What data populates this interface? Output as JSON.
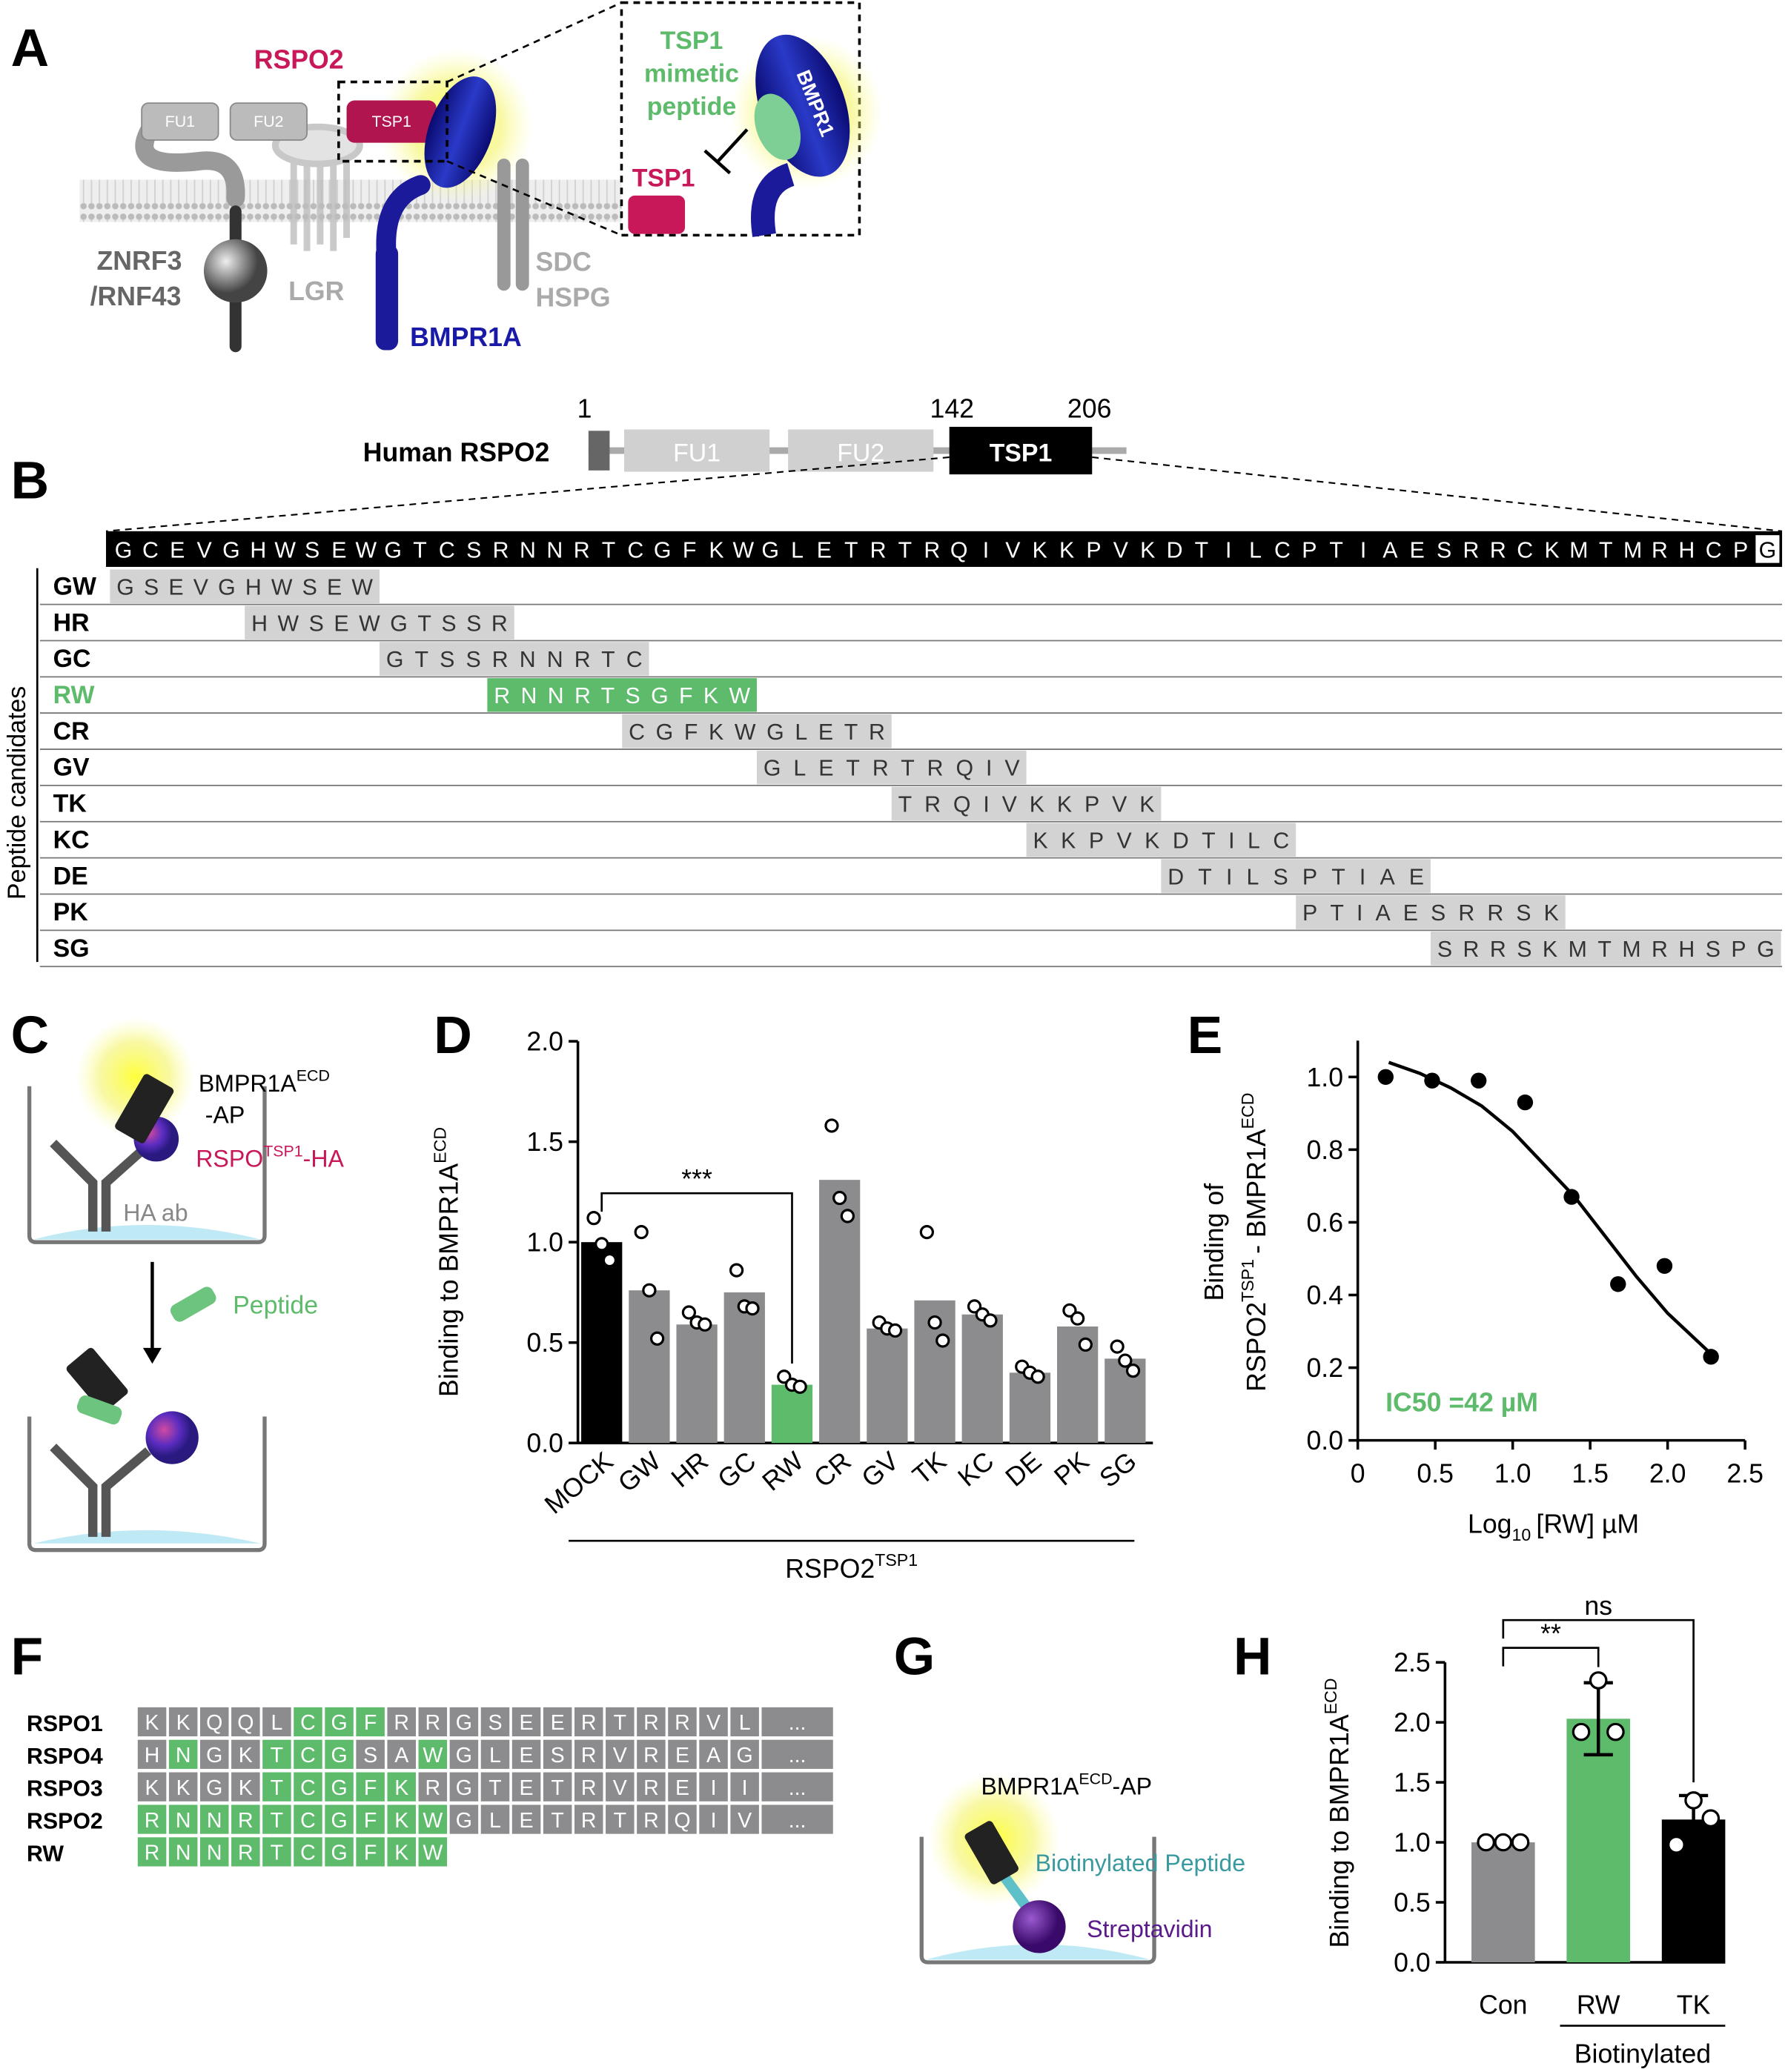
{
  "panel_labels": [
    "A",
    "B",
    "C",
    "D",
    "E",
    "F",
    "G",
    "H"
  ],
  "panel_a": {
    "rspo2": "RSPO2",
    "fu1": "FU1",
    "fu2": "FU2",
    "tsp1": "TSP1",
    "znrf3": "ZNRF3",
    "rnf43": "/RNF43",
    "lgr": "LGR",
    "bmpr1a": "BMPR1A",
    "sdc": "SDC",
    "hspg": "HSPG",
    "inset": {
      "mimetic_lines": [
        "TSP1",
        "mimetic",
        "peptide"
      ],
      "bmpr1": "BMPR1",
      "tsp1": "TSP1"
    }
  },
  "panel_b": {
    "positions": [
      1,
      142,
      206
    ],
    "protein": "Human RSPO2",
    "domains": [
      "FU1",
      "FU2",
      "TSP1"
    ],
    "sequence": [
      "G",
      "C",
      "E",
      "V",
      "G",
      "H",
      "W",
      "S",
      "E",
      "W",
      "G",
      "T",
      "C",
      "S",
      "R",
      "N",
      "N",
      "R",
      "T",
      "C",
      "G",
      "F",
      "K",
      "W",
      "G",
      "L",
      "E",
      "T",
      "R",
      "T",
      "R",
      "Q",
      "I",
      "V",
      "K",
      "K",
      "P",
      "V",
      "K",
      "D",
      "T",
      "I",
      "L",
      "C",
      "P",
      "T",
      "I",
      "A",
      "E",
      "S",
      "R",
      "R",
      "C",
      "K",
      "M",
      "T",
      "M",
      "R",
      "H",
      "C",
      "P",
      "G"
    ],
    "candidates_label": "Peptide candidates",
    "highlight_color": "#5dbb6b",
    "peptides": [
      {
        "name": "GW",
        "sequence": "GSEVGHWSEW"
      },
      {
        "name": "HR",
        "sequence": "HWSEWGTSSR"
      },
      {
        "name": "GC",
        "sequence": "GTSSRNNRTC"
      },
      {
        "name": "RW",
        "sequence": "RNNRTSGFKW",
        "highlighted": true
      },
      {
        "name": "CR",
        "sequence": "CGFKWGLETR"
      },
      {
        "name": "GV",
        "sequence": "GLETRTRQIV"
      },
      {
        "name": "TK",
        "sequence": "TRQIVKKPVK"
      },
      {
        "name": "KC",
        "sequence": "KKPVKDTILC"
      },
      {
        "name": "DE",
        "sequence": "DTILSPTIAE"
      },
      {
        "name": "PK",
        "sequence": "PTIAESRRSK"
      },
      {
        "name": "SG",
        "sequence": "SRRSKMTMRHSPG"
      }
    ]
  },
  "panel_c": {
    "bmpr1a": "BMPR1A",
    "ecd": "ECD",
    "ap": "-AP",
    "rspo": "RSPO",
    "tsp1": "TSP1",
    "ha": "-HA",
    "ha_ab": "HA ab",
    "peptide": "Peptide"
  },
  "panel_f": {
    "rows": [
      {
        "name": "RSPO1",
        "residues": [
          "K",
          "K",
          "Q",
          "Q",
          "L",
          "C",
          "G",
          "F",
          "R",
          "R",
          "G",
          "S",
          "E",
          "E",
          "R",
          "T",
          "R",
          "R",
          "V",
          "L",
          "..."
        ],
        "highlight": [
          5,
          6,
          7
        ]
      },
      {
        "name": "RSPO4",
        "residues": [
          "H",
          "N",
          "G",
          "K",
          "T",
          "C",
          "G",
          "S",
          "A",
          "W",
          "G",
          "L",
          "E",
          "S",
          "R",
          "V",
          "R",
          "E",
          "A",
          "G",
          "..."
        ],
        "highlight": [
          1,
          4,
          5,
          6,
          9
        ]
      },
      {
        "name": "RSPO3",
        "residues": [
          "K",
          "K",
          "G",
          "K",
          "T",
          "C",
          "G",
          "F",
          "K",
          "R",
          "G",
          "T",
          "E",
          "T",
          "R",
          "V",
          "R",
          "E",
          "I",
          "I",
          "..."
        ],
        "highlight": [
          4,
          5,
          6,
          7,
          8
        ]
      },
      {
        "name": "RSPO2",
        "residues": [
          "R",
          "N",
          "N",
          "R",
          "T",
          "C",
          "G",
          "F",
          "K",
          "W",
          "G",
          "L",
          "E",
          "T",
          "R",
          "T",
          "R",
          "Q",
          "I",
          "V",
          "..."
        ],
        "highlight": [
          0,
          1,
          2,
          3,
          4,
          5,
          6,
          7,
          8,
          9
        ]
      },
      {
        "name": "RW",
        "residues": [
          "R",
          "N",
          "N",
          "R",
          "T",
          "C",
          "G",
          "F",
          "K",
          "W"
        ],
        "highlight": [
          0,
          1,
          2,
          3,
          4,
          5,
          6,
          7,
          8,
          9
        ]
      }
    ]
  },
  "panel_g": {
    "bmpr1a": "BMPR1A",
    "ecd": "ECD",
    "ap": "-AP",
    "biotinylated_peptide": "Biotinylated Peptide",
    "streptavidin": "Streptavidin"
  },
  "chart_data": [
    {
      "type": "bar",
      "ylabel": "Binding to BMPR1A",
      "ylabel_sup": "ECD",
      "group_label": "RSPO2",
      "group_label_sup": "TSP1",
      "categories": [
        "MOCK",
        "GW",
        "HR",
        "GC",
        "RW",
        "CR",
        "GV",
        "TK",
        "KC",
        "DE",
        "PK",
        "SG"
      ],
      "values": [
        1.0,
        0.76,
        0.59,
        0.75,
        0.29,
        1.31,
        0.57,
        0.71,
        0.64,
        0.35,
        0.58,
        0.42
      ],
      "colors": [
        "#000000",
        "#8c8c8f",
        "#8c8c8f",
        "#8c8c8f",
        "#5dbb6b",
        "#8c8c8f",
        "#8c8c8f",
        "#8c8c8f",
        "#8c8c8f",
        "#8c8c8f",
        "#8c8c8f",
        "#8c8c8f"
      ],
      "points": [
        [
          1.12,
          0.99,
          0.91
        ],
        [
          1.05,
          0.76,
          0.52
        ],
        [
          0.65,
          0.6,
          0.59
        ],
        [
          0.86,
          0.68,
          0.67
        ],
        [
          0.33,
          0.29,
          0.28
        ],
        [
          1.58,
          1.22,
          1.13
        ],
        [
          0.6,
          0.57,
          0.56
        ],
        [
          1.05,
          0.6,
          0.51
        ],
        [
          0.68,
          0.64,
          0.61
        ],
        [
          0.38,
          0.35,
          0.33
        ],
        [
          0.66,
          0.62,
          0.49
        ],
        [
          0.48,
          0.41,
          0.36
        ]
      ],
      "significance": [
        {
          "text": "***",
          "from": 0,
          "to": 4
        }
      ],
      "ylim": [
        0,
        2
      ],
      "yticks": [
        {
          "value": 0,
          "label": "0.0"
        },
        0.5,
        {
          "value": 1,
          "label": "1.0"
        },
        1.5,
        {
          "value": 2,
          "label": "2.0"
        }
      ]
    },
    {
      "type": "scatter",
      "ylabel_lines": [
        [
          "Binding of"
        ],
        [
          "RSPO2",
          "TSP1",
          "- BMPR1A",
          "ECD"
        ]
      ],
      "xlabel_parts": [
        "Log",
        "10",
        "[RW] µM"
      ],
      "x": [
        0.18,
        0.48,
        0.78,
        1.08,
        1.38,
        1.68,
        1.98,
        2.28
      ],
      "y": [
        1.0,
        0.99,
        0.99,
        0.93,
        0.67,
        0.43,
        0.48,
        0.23
      ],
      "color": "#000000",
      "fit": {
        "x": [
          0.2,
          0.4,
          0.6,
          0.8,
          1.0,
          1.2,
          1.4,
          1.6,
          1.8,
          2.0,
          2.2,
          2.3
        ],
        "y": [
          1.04,
          1.01,
          0.97,
          0.92,
          0.85,
          0.76,
          0.67,
          0.56,
          0.45,
          0.35,
          0.27,
          0.23
        ]
      },
      "annotation": "IC50 =42 µM",
      "annotation_color": "#5dbb6b",
      "xlim": [
        0,
        2.5
      ],
      "xticks": [
        0,
        0.5,
        {
          "value": 1,
          "label": "1.0"
        },
        1.5,
        {
          "value": 2,
          "label": "2.0"
        },
        2.5
      ],
      "ylim": [
        0,
        1.1
      ],
      "yticks": [
        {
          "value": 0,
          "label": "0.0"
        },
        0.2,
        0.4,
        0.6,
        0.8,
        {
          "value": 1,
          "label": "1.0"
        }
      ]
    },
    {
      "type": "bar",
      "ylabel": "Binding to BMPR1A",
      "ylabel_sup": "ECD",
      "group_label": "Biotinylated",
      "categories": [
        "Con",
        "RW",
        "TK"
      ],
      "values": [
        1.0,
        2.03,
        1.19
      ],
      "errors": [
        0,
        0.3,
        0.2
      ],
      "colors": [
        "#8c8c8f",
        "#5dbb6b",
        "#000000"
      ],
      "points": [
        [
          1,
          1,
          1
        ],
        [
          1.92,
          2.35,
          1.92
        ],
        [
          0.98,
          1.35,
          1.2
        ]
      ],
      "significance": [
        {
          "text": "**",
          "from": 0,
          "to": 1
        },
        {
          "text": "ns",
          "from": 0,
          "to": 2
        }
      ],
      "ylim": [
        0,
        2.5
      ],
      "yticks": [
        {
          "value": 0,
          "label": "0.0"
        },
        0.5,
        {
          "value": 1,
          "label": "1.0"
        },
        1.5,
        {
          "value": 2,
          "label": "2.0"
        },
        2.5
      ]
    }
  ]
}
